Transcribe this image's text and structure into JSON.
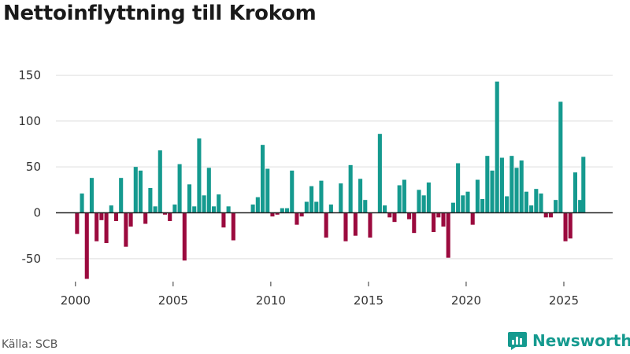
{
  "title": "Nettoinflyttning till Krokom",
  "source": "Källa: SCB",
  "brand": "Newsworthy",
  "colors": {
    "positive": "#159a8f",
    "negative": "#9b0a3e",
    "grid": "#dddddd",
    "zero": "#222222",
    "brand": "#159a8f"
  },
  "chart_data": {
    "type": "bar",
    "title": "Nettoinflyttning till Krokom",
    "xlabel": "",
    "ylabel": "",
    "ylim": [
      -75,
      165
    ],
    "xlim": [
      1999.0,
      2027.5
    ],
    "yticks": [
      -50,
      0,
      50,
      100,
      150
    ],
    "xticks": [
      2000,
      2005,
      2010,
      2015,
      2020,
      2025
    ],
    "grid": true,
    "legend": "none",
    "x": [
      2000.083,
      2000.333,
      2000.583,
      2000.833,
      2001.083,
      2001.333,
      2001.583,
      2001.833,
      2002.083,
      2002.333,
      2002.583,
      2002.833,
      2003.083,
      2003.333,
      2003.583,
      2003.833,
      2004.083,
      2004.333,
      2004.583,
      2004.833,
      2005.083,
      2005.333,
      2005.583,
      2005.833,
      2006.083,
      2006.333,
      2006.583,
      2006.833,
      2007.083,
      2007.333,
      2007.583,
      2007.833,
      2008.083,
      2008.333,
      2008.583,
      2008.833,
      2009.083,
      2009.333,
      2009.583,
      2009.833,
      2010.083,
      2010.333,
      2010.583,
      2010.833,
      2011.083,
      2011.333,
      2011.583,
      2011.833,
      2012.083,
      2012.333,
      2012.583,
      2012.833,
      2013.083,
      2013.333,
      2013.583,
      2013.833,
      2014.083,
      2014.333,
      2014.583,
      2014.833,
      2015.083,
      2015.333,
      2015.583,
      2015.833,
      2016.083,
      2016.333,
      2016.583,
      2016.833,
      2017.083,
      2017.333,
      2017.583,
      2017.833,
      2018.083,
      2018.333,
      2018.583,
      2018.833,
      2019.083,
      2019.333,
      2019.583,
      2019.833,
      2020.083,
      2020.333,
      2020.583,
      2020.833,
      2021.083,
      2021.333,
      2021.583,
      2021.833,
      2022.083,
      2022.333,
      2022.583,
      2022.833,
      2023.083,
      2023.333,
      2023.583,
      2023.833,
      2024.083,
      2024.333,
      2024.583,
      2024.833,
      2025.083,
      2025.333,
      2025.583,
      2025.833
    ],
    "values": [
      -23,
      21,
      -72,
      38,
      -31,
      -8,
      -33,
      8,
      -9,
      38,
      -37,
      -15,
      50,
      46,
      -12,
      27,
      7,
      68,
      -2,
      -9,
      9,
      53,
      -52,
      31,
      7,
      81,
      19,
      49,
      7,
      20,
      -16,
      7,
      -30,
      0,
      0,
      0,
      9,
      17,
      74,
      48,
      -4,
      -2,
      5,
      5,
      46,
      -13,
      -4,
      12,
      29,
      12,
      35,
      -27,
      9,
      0,
      32,
      -31,
      52,
      -25,
      37,
      14,
      -27,
      0,
      86,
      8,
      -5,
      -10,
      30,
      36,
      -7,
      -22,
      25,
      19,
      33,
      -21,
      -5,
      -15,
      -49,
      11,
      54,
      19,
      23,
      -13,
      36,
      15,
      62,
      46,
      143,
      60,
      18,
      62,
      49,
      57,
      23,
      8,
      26,
      21,
      -5,
      -5,
      14,
      121,
      -31,
      -28,
      44,
      14
    ],
    "last_value": 61,
    "last_x": 2026.0
  }
}
